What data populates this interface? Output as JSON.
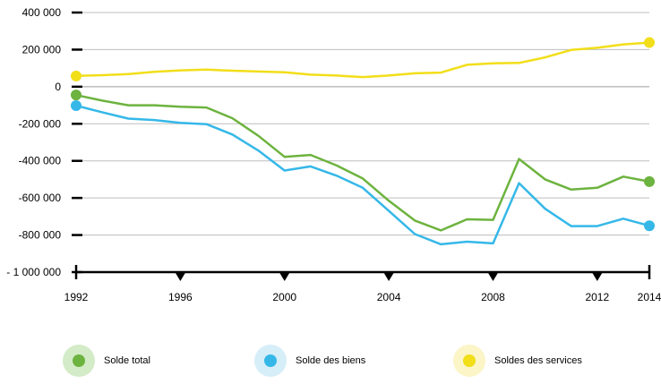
{
  "chart_data": {
    "type": "line",
    "x": [
      1992,
      1993,
      1994,
      1995,
      1996,
      1997,
      1998,
      1999,
      2000,
      2001,
      2002,
      2003,
      2004,
      2005,
      2006,
      2007,
      2008,
      2009,
      2010,
      2011,
      2012,
      2013,
      2014
    ],
    "x_ticks": [
      "1992",
      "1996",
      "2000",
      "2004",
      "2008",
      "2012",
      "2014"
    ],
    "y_ticks": [
      "400 000",
      "200 000",
      "0",
      "-200 000",
      "-400 000",
      "-600 000",
      "-800 000",
      "- 1 000 000"
    ],
    "ylim": [
      -1000000,
      400000
    ],
    "grid": true,
    "legend_position": "bottom",
    "series": [
      {
        "name": "Solde total",
        "color": "#6db33f",
        "halo": "#d3ebc7",
        "values": [
          -45000,
          -75000,
          -100000,
          -100000,
          -108000,
          -112000,
          -170000,
          -265000,
          -378000,
          -368000,
          -425000,
          -495000,
          -615000,
          -722000,
          -775000,
          -715000,
          -718000,
          -390000,
          -500000,
          -555000,
          -545000,
          -485000,
          -512000
        ]
      },
      {
        "name": "Solde des biens",
        "color": "#35b8e8",
        "halo": "#d6eef8",
        "values": [
          -102000,
          -138000,
          -172000,
          -180000,
          -195000,
          -202000,
          -258000,
          -345000,
          -452000,
          -430000,
          -480000,
          -545000,
          -670000,
          -795000,
          -850000,
          -836000,
          -845000,
          -520000,
          -658000,
          -752000,
          -752000,
          -712000,
          -750000
        ]
      },
      {
        "name": "Soldes des services",
        "color": "#f2de19",
        "halo": "#fbf5c7",
        "values": [
          58000,
          62000,
          68000,
          80000,
          88000,
          92000,
          86000,
          82000,
          78000,
          65000,
          60000,
          52000,
          60000,
          72000,
          76000,
          118000,
          126000,
          128000,
          158000,
          198000,
          210000,
          228000,
          238000
        ]
      }
    ]
  }
}
